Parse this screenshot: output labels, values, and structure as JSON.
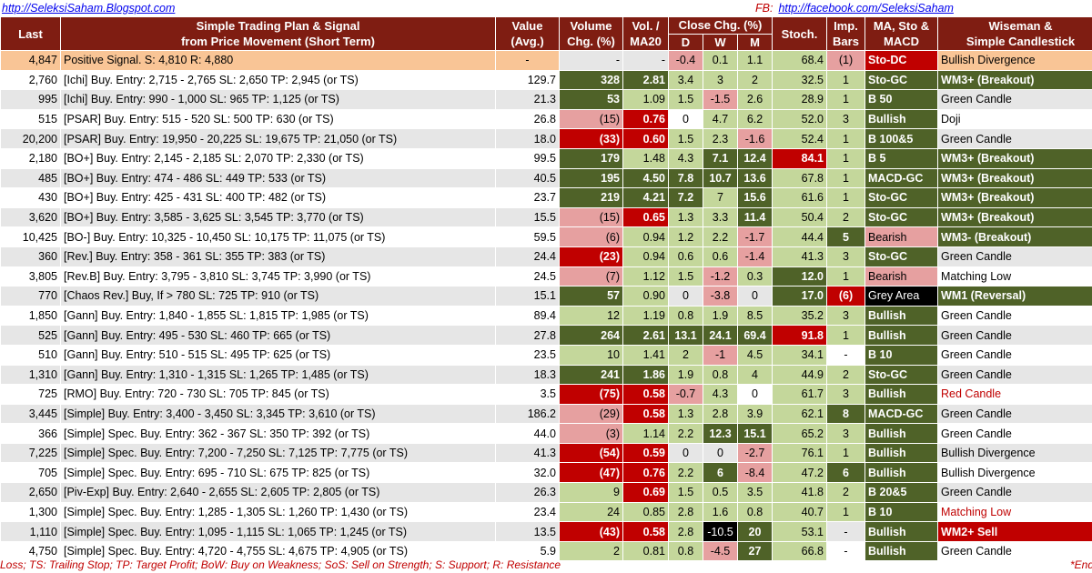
{
  "links": {
    "left": "http://SeleksiSaham.Blogspot.com",
    "fb_label": "FB:",
    "right": "http://facebook.com/SeleksiSaham"
  },
  "headers": {
    "last": "Last",
    "plan": [
      "Simple Trading Plan & Signal",
      "from Price Movement (Short Term)"
    ],
    "value": [
      "Value",
      "(Avg.)"
    ],
    "volume": [
      "Volume",
      "Chg. (%)"
    ],
    "vol": [
      "Vol. /",
      "MA20"
    ],
    "close": "Close Chg. (%)",
    "d": "D",
    "w": "W",
    "m": "M",
    "stoch": "Stoch.",
    "imp": [
      "Imp.",
      "Bars"
    ],
    "ma": [
      "MA, Sto &",
      "MACD"
    ],
    "wise": [
      "Wiseman &",
      "Simple Candlestick"
    ]
  },
  "rows": [
    {
      "last": "4,847",
      "plan": "Positive Signal.  S:   4,810  R:   4,880",
      "value": "-",
      "vol": "-",
      "volma": "-",
      "d": "-0.4",
      "w": "0.1",
      "m": "1.1",
      "stoch": "68.4",
      "imp": "(1)",
      "ma": "Sto-DC",
      "wise": "Bullish Divergence"
    },
    {
      "last": "2,760",
      "plan": "[Ichi] Buy.  Entry:  2,715 -  2,765  SL:  2,650  TP:  2,945 (or TS)",
      "value": "129.7",
      "vol": "328",
      "volma": "2.81",
      "d": "3.4",
      "w": "3",
      "m": "2",
      "stoch": "32.5",
      "imp": "1",
      "ma": "Sto-GC",
      "wise": "WM3+ (Breakout)"
    },
    {
      "last": "995",
      "plan": "[Ichi] Buy.  Entry:    990 -  1,000  SL:    965  TP:  1,125 (or TS)",
      "value": "21.3",
      "vol": "53",
      "volma": "1.09",
      "d": "1.5",
      "w": "-1.5",
      "m": "2.6",
      "stoch": "28.9",
      "imp": "1",
      "ma": "B 50",
      "wise": "Green Candle"
    },
    {
      "last": "515",
      "plan": "[PSAR] Buy.  Entry:    515 -    520  SL:    500  TP:    630 (or TS)",
      "value": "26.8",
      "vol": "(15)",
      "volma": "0.76",
      "d": "0",
      "w": "4.7",
      "m": "6.2",
      "stoch": "52.0",
      "imp": "3",
      "ma": "Bullish",
      "wise": "Doji"
    },
    {
      "last": "20,200",
      "plan": "[PSAR] Buy.  Entry: 19,950 - 20,225  SL: 19,675  TP: 21,050 (or TS)",
      "value": "18.0",
      "vol": "(33)",
      "volma": "0.60",
      "d": "1.5",
      "w": "2.3",
      "m": "-1.6",
      "stoch": "52.4",
      "imp": "1",
      "ma": "B 100&5",
      "wise": "Green Candle"
    },
    {
      "last": "2,180",
      "plan": "[BO+] Buy.  Entry:  2,145 -  2,185  SL:  2,070  TP:  2,330 (or TS)",
      "value": "99.5",
      "vol": "179",
      "volma": "1.48",
      "d": "4.3",
      "w": "7.1",
      "m": "12.4",
      "stoch": "84.1",
      "imp": "1",
      "ma": "B 5",
      "wise": "WM3+ (Breakout)"
    },
    {
      "last": "485",
      "plan": "[BO+] Buy.  Entry:    474 -    486  SL:    449  TP:    533 (or TS)",
      "value": "40.5",
      "vol": "195",
      "volma": "4.50",
      "d": "7.8",
      "w": "10.7",
      "m": "13.6",
      "stoch": "67.8",
      "imp": "1",
      "ma": "MACD-GC",
      "wise": "WM3+ (Breakout)"
    },
    {
      "last": "430",
      "plan": "[BO+] Buy.  Entry:    425 -    431  SL:    400  TP:    482 (or TS)",
      "value": "23.7",
      "vol": "219",
      "volma": "4.21",
      "d": "7.2",
      "w": "7",
      "m": "15.6",
      "stoch": "61.6",
      "imp": "1",
      "ma": "Sto-GC",
      "wise": "WM3+ (Breakout)"
    },
    {
      "last": "3,620",
      "plan": "[BO+] Buy.  Entry:  3,585 -  3,625  SL:  3,545  TP:  3,770 (or TS)",
      "value": "15.5",
      "vol": "(15)",
      "volma": "0.65",
      "d": "1.3",
      "w": "3.3",
      "m": "11.4",
      "stoch": "50.4",
      "imp": "2",
      "ma": "Sto-GC",
      "wise": "WM3+ (Breakout)"
    },
    {
      "last": "10,425",
      "plan": "[BO-] Buy.  Entry: 10,325 - 10,450  SL: 10,175  TP: 11,075 (or TS)",
      "value": "59.5",
      "vol": "(6)",
      "volma": "0.94",
      "d": "1.2",
      "w": "2.2",
      "m": "-1.7",
      "stoch": "44.4",
      "imp": "5",
      "ma": "Bearish",
      "wise": "WM3- (Breakout)"
    },
    {
      "last": "360",
      "plan": "[Rev.] Buy.  Entry:    358 -    361  SL:    355  TP:    383 (or TS)",
      "value": "24.4",
      "vol": "(23)",
      "volma": "0.94",
      "d": "0.6",
      "w": "0.6",
      "m": "-1.4",
      "stoch": "41.3",
      "imp": "3",
      "ma": "Sto-GC",
      "wise": "Green Candle"
    },
    {
      "last": "3,805",
      "plan": "[Rev.B] Buy.  Entry:  3,795 -  3,810  SL:  3,745  TP:  3,990 (or TS)",
      "value": "24.5",
      "vol": "(7)",
      "volma": "1.12",
      "d": "1.5",
      "w": "-1.2",
      "m": "0.3",
      "stoch": "12.0",
      "imp": "1",
      "ma": "Bearish",
      "wise": "Matching Low"
    },
    {
      "last": "770",
      "plan": "[Chaos Rev.] Buy, If >   780  SL:   725  TP:   910 (or TS)",
      "value": "15.1",
      "vol": "57",
      "volma": "0.90",
      "d": "0",
      "w": "-3.8",
      "m": "0",
      "stoch": "17.0",
      "imp": "(6)",
      "ma": "Grey Area",
      "wise": "WM1 (Reversal)"
    },
    {
      "last": "1,850",
      "plan": "[Gann] Buy.  Entry:  1,840 -  1,855  SL:  1,815  TP:  1,985 (or TS)",
      "value": "89.4",
      "vol": "12",
      "volma": "1.19",
      "d": "0.8",
      "w": "1.9",
      "m": "8.5",
      "stoch": "35.2",
      "imp": "3",
      "ma": "Bullish",
      "wise": "Green Candle"
    },
    {
      "last": "525",
      "plan": "[Gann] Buy.  Entry:    495 -    530  SL:    460  TP:    665 (or TS)",
      "value": "27.8",
      "vol": "264",
      "volma": "2.61",
      "d": "13.1",
      "w": "24.1",
      "m": "69.4",
      "stoch": "91.8",
      "imp": "1",
      "ma": "Bullish",
      "wise": "Green Candle"
    },
    {
      "last": "510",
      "plan": "[Gann] Buy.  Entry:    510 -    515  SL:    495  TP:    625 (or TS)",
      "value": "23.5",
      "vol": "10",
      "volma": "1.41",
      "d": "2",
      "w": "-1",
      "m": "4.5",
      "stoch": "34.1",
      "imp": "-",
      "ma": "B 10",
      "wise": "Green Candle"
    },
    {
      "last": "1,310",
      "plan": "[Gann] Buy.  Entry:  1,310 -  1,315  SL:  1,265  TP:  1,485 (or TS)",
      "value": "18.3",
      "vol": "241",
      "volma": "1.86",
      "d": "1.9",
      "w": "0.8",
      "m": "4",
      "stoch": "44.9",
      "imp": "2",
      "ma": "Sto-GC",
      "wise": "Green Candle"
    },
    {
      "last": "725",
      "plan": "[RMO] Buy.  Entry:    720 -    730  SL:    705  TP:    845 (or TS)",
      "value": "3.5",
      "vol": "(75)",
      "volma": "0.58",
      "d": "-0.7",
      "w": "4.3",
      "m": "0",
      "stoch": "61.7",
      "imp": "3",
      "ma": "Bullish",
      "wise": "Red Candle"
    },
    {
      "last": "3,445",
      "plan": "[Simple] Buy.  Entry:  3,400 -  3,450  SL:  3,345  TP:  3,610 (or TS)",
      "value": "186.2",
      "vol": "(29)",
      "volma": "0.58",
      "d": "1.3",
      "w": "2.8",
      "m": "3.9",
      "stoch": "62.1",
      "imp": "8",
      "ma": "MACD-GC",
      "wise": "Green Candle"
    },
    {
      "last": "366",
      "plan": "[Simple] Spec. Buy. Entry:    362 -    367  SL:    350  TP:    392 (or TS)",
      "value": "44.0",
      "vol": "(3)",
      "volma": "1.14",
      "d": "2.2",
      "w": "12.3",
      "m": "15.1",
      "stoch": "65.2",
      "imp": "3",
      "ma": "Bullish",
      "wise": "Green Candle"
    },
    {
      "last": "7,225",
      "plan": "[Simple] Spec. Buy. Entry:  7,200 -  7,250  SL:  7,125  TP:  7,775 (or TS)",
      "value": "41.3",
      "vol": "(54)",
      "volma": "0.59",
      "d": "0",
      "w": "0",
      "m": "-2.7",
      "stoch": "76.1",
      "imp": "1",
      "ma": "Bullish",
      "wise": "Bullish Divergence"
    },
    {
      "last": "705",
      "plan": "[Simple] Spec. Buy. Entry:    695 -    710  SL:    675  TP:    825 (or TS)",
      "value": "32.0",
      "vol": "(47)",
      "volma": "0.76",
      "d": "2.2",
      "w": "6",
      "m": "-8.4",
      "stoch": "47.2",
      "imp": "6",
      "ma": "Bullish",
      "wise": "Bullish Divergence"
    },
    {
      "last": "2,650",
      "plan": "[Piv-Exp] Buy.  Entry:  2,640 -  2,655  SL:  2,605  TP:  2,805 (or TS)",
      "value": "26.3",
      "vol": "9",
      "volma": "0.69",
      "d": "1.5",
      "w": "0.5",
      "m": "3.5",
      "stoch": "41.8",
      "imp": "2",
      "ma": "B 20&5",
      "wise": "Green Candle"
    },
    {
      "last": "1,300",
      "plan": "[Simple] Spec. Buy. Entry:  1,285 -  1,305  SL:  1,260  TP:  1,430 (or TS)",
      "value": "23.4",
      "vol": "24",
      "volma": "0.85",
      "d": "2.8",
      "w": "1.6",
      "m": "0.8",
      "stoch": "40.7",
      "imp": "1",
      "ma": "B 10",
      "wise": "Matching Low"
    },
    {
      "last": "1,110",
      "plan": "[Simple] Spec. Buy. Entry:  1,095 -  1,115  SL:  1,065  TP:  1,245 (or TS)",
      "value": "13.5",
      "vol": "(43)",
      "volma": "0.58",
      "d": "2.8",
      "w": "-10.5",
      "m": "20",
      "stoch": "53.1",
      "imp": "-",
      "ma": "Bullish",
      "wise": "WM2+ Sell"
    },
    {
      "last": "4,750",
      "plan": "[Simple] Spec. Buy. Entry:  4,720 -  4,755  SL:  4,675  TP:  4,905 (or TS)",
      "value": "5.9",
      "vol": "2",
      "volma": "0.81",
      "d": "0.8",
      "w": "-4.5",
      "m": "27",
      "stoch": "66.8",
      "imp": "-",
      "ma": "Bullish",
      "wise": "Green Candle"
    }
  ],
  "styles": [
    {
      "vol": "nt",
      "volma": "nt",
      "d": "pk",
      "w": "lg",
      "m": "lg",
      "stoch": "lg",
      "imp": "pk",
      "ma": "rd",
      "wise": "g"
    },
    {
      "vol": "dg",
      "volma": "dg",
      "d": "lg",
      "w": "lg",
      "m": "lg",
      "stoch": "lg",
      "imp": "lg",
      "ma": "dg",
      "wise": "dg"
    },
    {
      "vol": "dg",
      "volma": "lg",
      "d": "lg",
      "w": "pk",
      "m": "lg",
      "stoch": "lg",
      "imp": "lg",
      "ma": "dg",
      "wise": "g"
    },
    {
      "vol": "pk",
      "volma": "rd",
      "d": "g",
      "w": "lg",
      "m": "lg",
      "stoch": "lg",
      "imp": "lg",
      "ma": "dg",
      "wise": "g"
    },
    {
      "vol": "rd",
      "volma": "rd",
      "d": "lg",
      "w": "lg",
      "m": "pk",
      "stoch": "lg",
      "imp": "lg",
      "ma": "dg",
      "wise": "g"
    },
    {
      "vol": "dg",
      "volma": "lg",
      "d": "lg",
      "w": "dg",
      "m": "dg",
      "stoch": "rd",
      "imp": "lg",
      "ma": "dg",
      "wise": "dg"
    },
    {
      "vol": "dg",
      "volma": "dg",
      "d": "dg",
      "w": "dg",
      "m": "dg",
      "stoch": "lg",
      "imp": "lg",
      "ma": "dg",
      "wise": "dg"
    },
    {
      "vol": "dg",
      "volma": "dg",
      "d": "dg",
      "w": "lg",
      "m": "dg",
      "stoch": "lg",
      "imp": "lg",
      "ma": "dg",
      "wise": "dg"
    },
    {
      "vol": "pk",
      "volma": "rd",
      "d": "lg",
      "w": "lg",
      "m": "dg",
      "stoch": "lg",
      "imp": "lg",
      "ma": "dg",
      "wise": "dg"
    },
    {
      "vol": "pk",
      "volma": "lg",
      "d": "lg",
      "w": "lg",
      "m": "pk",
      "stoch": "lg",
      "imp": "dg",
      "ma": "pk",
      "wise": "dg"
    },
    {
      "vol": "rd",
      "volma": "lg",
      "d": "lg",
      "w": "lg",
      "m": "pk",
      "stoch": "lg",
      "imp": "lg",
      "ma": "dg",
      "wise": "g"
    },
    {
      "vol": "pk",
      "volma": "lg",
      "d": "lg",
      "w": "pk",
      "m": "lg",
      "stoch": "dg",
      "imp": "lg",
      "ma": "pk",
      "wise": "g"
    },
    {
      "vol": "dg",
      "volma": "lg",
      "d": "g",
      "w": "pk",
      "m": "g",
      "stoch": "dg",
      "imp": "rd",
      "ma": "ng",
      "wise": "dg"
    },
    {
      "vol": "lg",
      "volma": "lg",
      "d": "lg",
      "w": "lg",
      "m": "lg",
      "stoch": "lg",
      "imp": "lg",
      "ma": "dg",
      "wise": "g"
    },
    {
      "vol": "dg",
      "volma": "dg",
      "d": "dg",
      "w": "dg",
      "m": "dg",
      "stoch": "rd",
      "imp": "lg",
      "ma": "dg",
      "wise": "g"
    },
    {
      "vol": "lg",
      "volma": "lg",
      "d": "lg",
      "w": "pk",
      "m": "lg",
      "stoch": "lg",
      "imp": "g",
      "ma": "dg",
      "wise": "g"
    },
    {
      "vol": "dg",
      "volma": "dg",
      "d": "lg",
      "w": "lg",
      "m": "lg",
      "stoch": "lg",
      "imp": "lg",
      "ma": "dg",
      "wise": "g"
    },
    {
      "vol": "rd",
      "volma": "rd",
      "d": "pk",
      "w": "lg",
      "m": "g",
      "stoch": "lg",
      "imp": "lg",
      "ma": "dg",
      "wise": "redtxt"
    },
    {
      "vol": "pk",
      "volma": "rd",
      "d": "lg",
      "w": "lg",
      "m": "lg",
      "stoch": "lg",
      "imp": "dg",
      "ma": "dg",
      "wise": "g"
    },
    {
      "vol": "pk",
      "volma": "lg",
      "d": "lg",
      "w": "dg",
      "m": "dg",
      "stoch": "lg",
      "imp": "lg",
      "ma": "dg",
      "wise": "g"
    },
    {
      "vol": "rd",
      "volma": "rd",
      "d": "g",
      "w": "g",
      "m": "pk",
      "stoch": "lg",
      "imp": "lg",
      "ma": "dg",
      "wise": "g"
    },
    {
      "vol": "rd",
      "volma": "rd",
      "d": "lg",
      "w": "dg",
      "m": "pk",
      "stoch": "lg",
      "imp": "dg",
      "ma": "dg",
      "wise": "g"
    },
    {
      "vol": "lg",
      "volma": "rd",
      "d": "lg",
      "w": "lg",
      "m": "lg",
      "stoch": "lg",
      "imp": "lg",
      "ma": "dg",
      "wise": "g"
    },
    {
      "vol": "lg",
      "volma": "lg",
      "d": "lg",
      "w": "lg",
      "m": "lg",
      "stoch": "lg",
      "imp": "lg",
      "ma": "dg",
      "wise": "redtxt"
    },
    {
      "vol": "rd",
      "volma": "rd",
      "d": "lg",
      "w": "ng",
      "m": "dg",
      "stoch": "lg",
      "imp": "g",
      "ma": "dg",
      "wise": "rd"
    },
    {
      "vol": "lg",
      "volma": "lg",
      "d": "lg",
      "w": "pk",
      "m": "dg",
      "stoch": "lg",
      "imp": "g",
      "ma": "dg",
      "wise": "g"
    }
  ],
  "footer": {
    "legend": "Loss; TS: Trailing Stop; TP: Target Profit; BoW: Buy on Weakness; SoS: Sell on Strength; S: Support; R: Resistance",
    "end": "*End o"
  }
}
